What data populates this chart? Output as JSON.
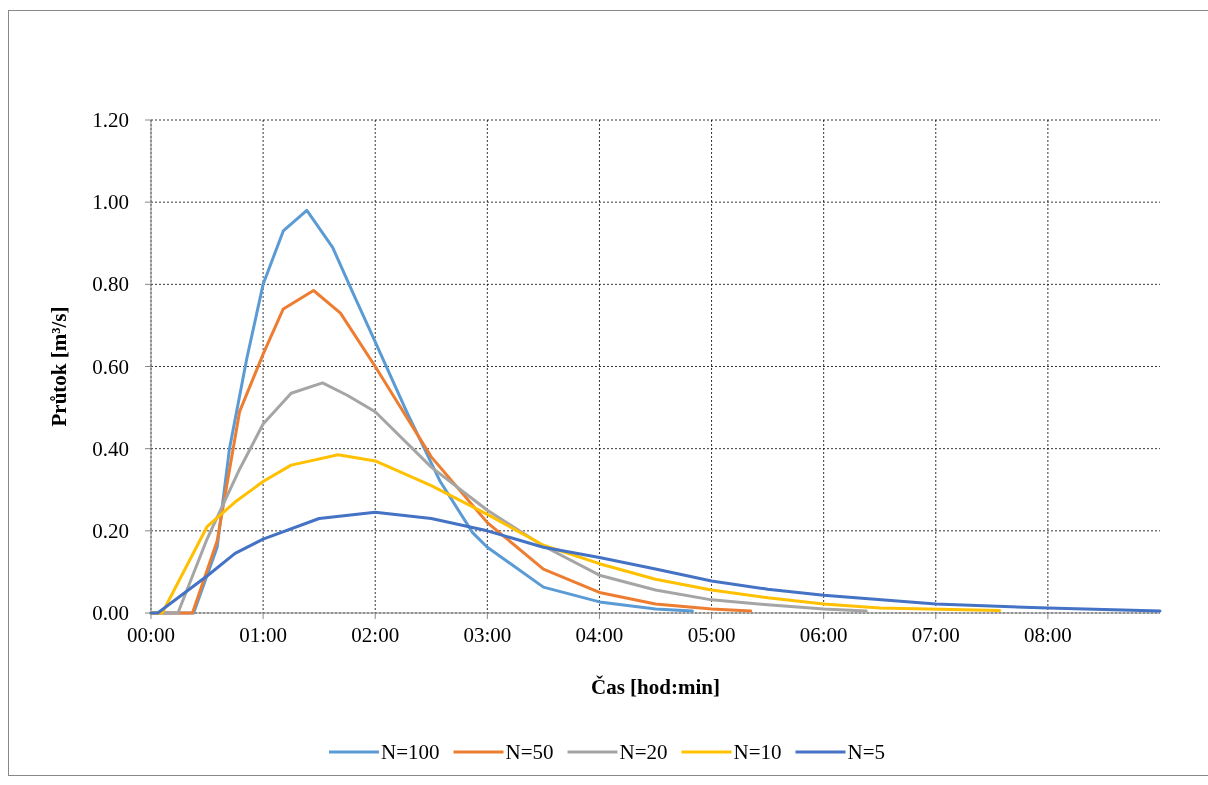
{
  "chart_data": {
    "type": "line",
    "xlabel": "Čas [hod:min]",
    "ylabel": "Průtok [m³/s]",
    "xlim": [
      0,
      9
    ],
    "xticks": [
      {
        "value": 0,
        "label": "00:00"
      },
      {
        "value": 1,
        "label": "01:00"
      },
      {
        "value": 2,
        "label": "02:00"
      },
      {
        "value": 3,
        "label": "03:00"
      },
      {
        "value": 4,
        "label": "04:00"
      },
      {
        "value": 5,
        "label": "05:00"
      },
      {
        "value": 6,
        "label": "06:00"
      },
      {
        "value": 7,
        "label": "07:00"
      },
      {
        "value": 8,
        "label": "08:00"
      }
    ],
    "ylim": [
      0,
      1.2
    ],
    "yticks": [
      {
        "value": 0,
        "label": "0.00"
      },
      {
        "value": 0.2,
        "label": "0.20"
      },
      {
        "value": 0.4,
        "label": "0.40"
      },
      {
        "value": 0.6,
        "label": "0.60"
      },
      {
        "value": 0.8,
        "label": "0.80"
      },
      {
        "value": 1,
        "label": "1.00"
      },
      {
        "value": 1.2,
        "label": "1.20"
      }
    ],
    "grid": true,
    "legend": "bottom",
    "marker": "none",
    "line_style": "solid",
    "series": [
      {
        "name": "N=100",
        "color": "#5b9bd5",
        "x": [
          0,
          0.38,
          0.59,
          0.7,
          0.855,
          1.0,
          1.18,
          1.39,
          1.62,
          1.8,
          2.0,
          2.28,
          2.58,
          2.87,
          3.0,
          3.5,
          4.0,
          4.5,
          4.83
        ],
        "values": [
          0,
          0,
          0.16,
          0.4,
          0.62,
          0.8,
          0.93,
          0.98,
          0.89,
          0.78,
          0.66,
          0.49,
          0.32,
          0.195,
          0.16,
          0.063,
          0.027,
          0.01,
          0.005
        ]
      },
      {
        "name": "N=50",
        "color": "#ed7d31",
        "x": [
          0,
          0.37,
          0.59,
          0.79,
          1.0,
          1.18,
          1.45,
          1.69,
          2.0,
          2.5,
          3.0,
          3.5,
          4.0,
          4.5,
          5.0,
          5.35
        ],
        "values": [
          0,
          0,
          0.175,
          0.49,
          0.63,
          0.74,
          0.785,
          0.73,
          0.6,
          0.38,
          0.22,
          0.107,
          0.05,
          0.022,
          0.01,
          0.005
        ]
      },
      {
        "name": "N=20",
        "color": "#a5a5a5",
        "x": [
          0,
          0.24,
          0.5,
          0.79,
          1.0,
          1.25,
          1.53,
          1.75,
          2.0,
          2.5,
          3.0,
          3.5,
          4.0,
          4.5,
          5.0,
          5.5,
          6.0,
          6.38
        ],
        "values": [
          0,
          0,
          0.18,
          0.35,
          0.46,
          0.535,
          0.56,
          0.53,
          0.49,
          0.355,
          0.25,
          0.163,
          0.092,
          0.056,
          0.032,
          0.02,
          0.01,
          0.005
        ]
      },
      {
        "name": "N=10",
        "color": "#ffc000",
        "x": [
          0,
          0.1,
          0.5,
          0.75,
          1.0,
          1.25,
          1.67,
          2.0,
          2.5,
          3.0,
          3.5,
          4.0,
          4.5,
          5.0,
          5.5,
          6.0,
          6.5,
          7.57
        ],
        "values": [
          0,
          0,
          0.21,
          0.27,
          0.32,
          0.36,
          0.385,
          0.37,
          0.31,
          0.24,
          0.165,
          0.12,
          0.082,
          0.056,
          0.037,
          0.022,
          0.012,
          0.006
        ]
      },
      {
        "name": "N=5",
        "color": "#4472c4",
        "x": [
          0,
          0.06,
          0.5,
          0.75,
          1.0,
          1.5,
          2.0,
          2.5,
          3.0,
          3.5,
          4.0,
          4.5,
          5.0,
          5.5,
          6.0,
          7.0,
          8.0,
          9.0
        ],
        "values": [
          0,
          0,
          0.09,
          0.145,
          0.18,
          0.23,
          0.245,
          0.23,
          0.2,
          0.16,
          0.135,
          0.107,
          0.078,
          0.058,
          0.043,
          0.022,
          0.012,
          0.005
        ]
      }
    ]
  }
}
